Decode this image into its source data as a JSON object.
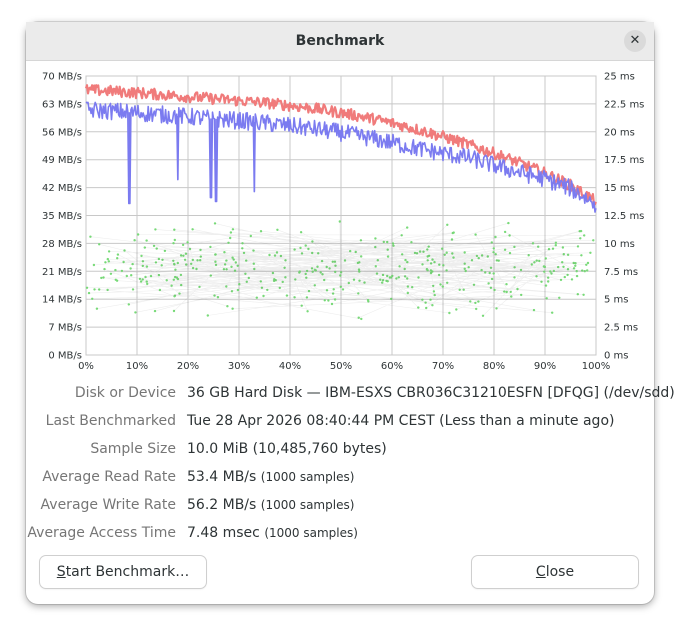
{
  "window": {
    "title": "Benchmark",
    "close_glyph": "✕"
  },
  "info": [
    {
      "label": "Disk or Device",
      "value": "36 GB Hard Disk — IBM-ESXS CBR036C31210ESFN [DFQG] (/dev/sdd)",
      "note": ""
    },
    {
      "label": "Last Benchmarked",
      "value": "Tue 28 Apr 2026 08:40:44 PM CEST (Less than a minute ago)",
      "note": ""
    },
    {
      "label": "Sample Size",
      "value": "10.0 MiB (10,485,760 bytes)",
      "note": ""
    },
    {
      "label": "Average Read Rate",
      "value": "53.4 MB/s",
      "note": "(1000 samples)"
    },
    {
      "label": "Average Write Rate",
      "value": "56.2 MB/s",
      "note": "(1000 samples)"
    },
    {
      "label": "Average Access Time",
      "value": "7.48 msec",
      "note": "(1000 samples)"
    }
  ],
  "buttons": {
    "start": {
      "mnemonic": "S",
      "rest": "tart Benchmark…"
    },
    "close": {
      "mnemonic": "C",
      "rest": "lose"
    }
  },
  "chart_data": {
    "type": "line",
    "x_ticks": [
      "0%",
      "10%",
      "20%",
      "30%",
      "40%",
      "50%",
      "60%",
      "70%",
      "80%",
      "90%",
      "100%"
    ],
    "y_left_ticks": [
      "0 MB/s",
      "7 MB/s",
      "14 MB/s",
      "21 MB/s",
      "28 MB/s",
      "35 MB/s",
      "42 MB/s",
      "49 MB/s",
      "56 MB/s",
      "63 MB/s",
      "70 MB/s"
    ],
    "y_right_ticks": [
      "0 ms",
      "2.5 ms",
      "5 ms",
      "7.5 ms",
      "10 ms",
      "12.5 ms",
      "15 ms",
      "17.5 ms",
      "20 ms",
      "22.5 ms",
      "25 ms"
    ],
    "ylim_left": [
      0,
      70
    ],
    "ylim_right": [
      0,
      25
    ],
    "xlim": [
      0,
      100
    ],
    "grid": true,
    "colors": {
      "read": "#7b7bf0",
      "write": "#f07b7b",
      "access": "#7bdd7b",
      "grid": "#c8c8c8"
    },
    "series": [
      {
        "key": "write",
        "x": [
          0,
          5,
          10,
          15,
          20,
          25,
          30,
          35,
          40,
          45,
          50,
          55,
          60,
          65,
          70,
          75,
          80,
          85,
          90,
          95,
          100
        ],
        "values": [
          66.5,
          66.2,
          65.8,
          65.3,
          64.8,
          64.3,
          63.8,
          63.3,
          62.6,
          61.8,
          60.8,
          59.6,
          58.2,
          56.6,
          54.8,
          52.8,
          50.6,
          48.2,
          45.6,
          42.6,
          38.5
        ]
      },
      {
        "key": "read",
        "x": [
          0,
          5,
          10,
          15,
          20,
          25,
          30,
          35,
          40,
          45,
          50,
          55,
          60,
          65,
          70,
          75,
          80,
          85,
          90,
          95,
          100
        ],
        "values": [
          61.5,
          61.2,
          60.8,
          60.3,
          59.8,
          59.3,
          58.8,
          58.2,
          57.5,
          56.7,
          55.8,
          54.6,
          53.3,
          51.8,
          50.6,
          49.5,
          47.6,
          45.8,
          44.2,
          41.8,
          37.8
        ],
        "dips": [
          {
            "x": 8.5,
            "value": 38.0
          },
          {
            "x": 18.0,
            "value": 44.0
          },
          {
            "x": 24.5,
            "value": 39.5
          },
          {
            "x": 25.5,
            "value": 38.5
          },
          {
            "x": 33.0,
            "value": 41.0
          }
        ]
      },
      {
        "key": "access",
        "type": "scatter",
        "samples": 1000,
        "range_ms": [
          2.5,
          13.0
        ]
      }
    ]
  }
}
